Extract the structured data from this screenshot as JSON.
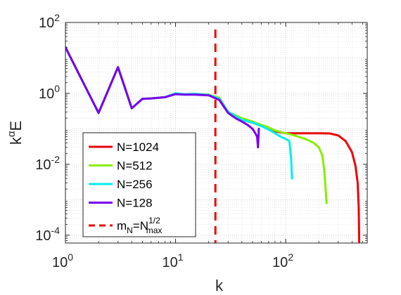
{
  "chart_data": {
    "type": "line",
    "xlabel": "k",
    "ylabel": "k^{α}E",
    "x_scale": "log",
    "y_scale": "log",
    "xlim": [
      1,
      550
    ],
    "ylim": [
      6e-05,
      100
    ],
    "x_ticks": [
      {
        "value": 1,
        "base": "10",
        "exp": "0"
      },
      {
        "value": 10,
        "base": "10",
        "exp": "1"
      },
      {
        "value": 100,
        "base": "10",
        "exp": "2"
      }
    ],
    "y_ticks": [
      {
        "value": 0.0001,
        "base": "10",
        "exp": "-4"
      },
      {
        "value": 0.01,
        "base": "10",
        "exp": "-2"
      },
      {
        "value": 1,
        "base": "10",
        "exp": "0"
      },
      {
        "value": 100,
        "base": "10",
        "exp": "2"
      }
    ],
    "grid": true,
    "legend_position": "bottom-left",
    "series": [
      {
        "name": "N=1024",
        "color": "#ee0000",
        "x": [
          1,
          2,
          3,
          4,
          5,
          6,
          8,
          10,
          12,
          15,
          20,
          25,
          30,
          40,
          50,
          60,
          70,
          80,
          100,
          120,
          150,
          200,
          250,
          300,
          350,
          400,
          430,
          450,
          460,
          465
        ],
        "y": [
          20,
          0.28,
          5.5,
          0.38,
          0.7,
          0.72,
          0.78,
          1.0,
          0.95,
          0.97,
          0.92,
          0.72,
          0.3,
          0.18,
          0.15,
          0.12,
          0.1,
          0.085,
          0.075,
          0.075,
          0.075,
          0.075,
          0.074,
          0.065,
          0.045,
          0.022,
          0.009,
          0.003,
          0.0006,
          6e-05
        ]
      },
      {
        "name": "N=512",
        "color": "#88ee00",
        "x": [
          1,
          2,
          3,
          4,
          5,
          6,
          8,
          10,
          12,
          15,
          20,
          25,
          30,
          40,
          50,
          60,
          70,
          80,
          100,
          120,
          150,
          180,
          200,
          215,
          225,
          232,
          235
        ],
        "y": [
          20,
          0.28,
          5.5,
          0.38,
          0.7,
          0.72,
          0.78,
          1.0,
          0.95,
          0.97,
          0.92,
          0.75,
          0.3,
          0.2,
          0.16,
          0.13,
          0.11,
          0.09,
          0.075,
          0.065,
          0.052,
          0.04,
          0.03,
          0.018,
          0.006,
          0.0015,
          0.0008
        ]
      },
      {
        "name": "N=256",
        "color": "#00eeee",
        "x": [
          1,
          2,
          3,
          4,
          5,
          6,
          8,
          10,
          12,
          15,
          20,
          25,
          30,
          40,
          50,
          60,
          70,
          80,
          90,
          100,
          108,
          112,
          114
        ],
        "y": [
          20,
          0.28,
          5.5,
          0.38,
          0.7,
          0.72,
          0.78,
          1.0,
          0.95,
          0.97,
          0.9,
          0.7,
          0.3,
          0.18,
          0.15,
          0.12,
          0.095,
          0.075,
          0.06,
          0.052,
          0.045,
          0.015,
          0.004
        ]
      },
      {
        "name": "N=128",
        "color": "#7700ee",
        "x": [
          1,
          2,
          3,
          4,
          5,
          6,
          8,
          10,
          12,
          15,
          20,
          25,
          30,
          35,
          40,
          45,
          50,
          53,
          55,
          56,
          57
        ],
        "y": [
          20,
          0.28,
          5.5,
          0.38,
          0.7,
          0.72,
          0.78,
          0.95,
          0.92,
          0.92,
          0.88,
          0.65,
          0.28,
          0.2,
          0.16,
          0.13,
          0.1,
          0.075,
          0.06,
          0.03,
          0.1
        ]
      }
    ],
    "reference_line": {
      "name_base": "m",
      "name_base_sub": "N",
      "name_eq": "=N",
      "name_sup": "1/2",
      "name_sub": "max",
      "color": "#ee0000",
      "style": "dashed",
      "x": 23
    }
  }
}
